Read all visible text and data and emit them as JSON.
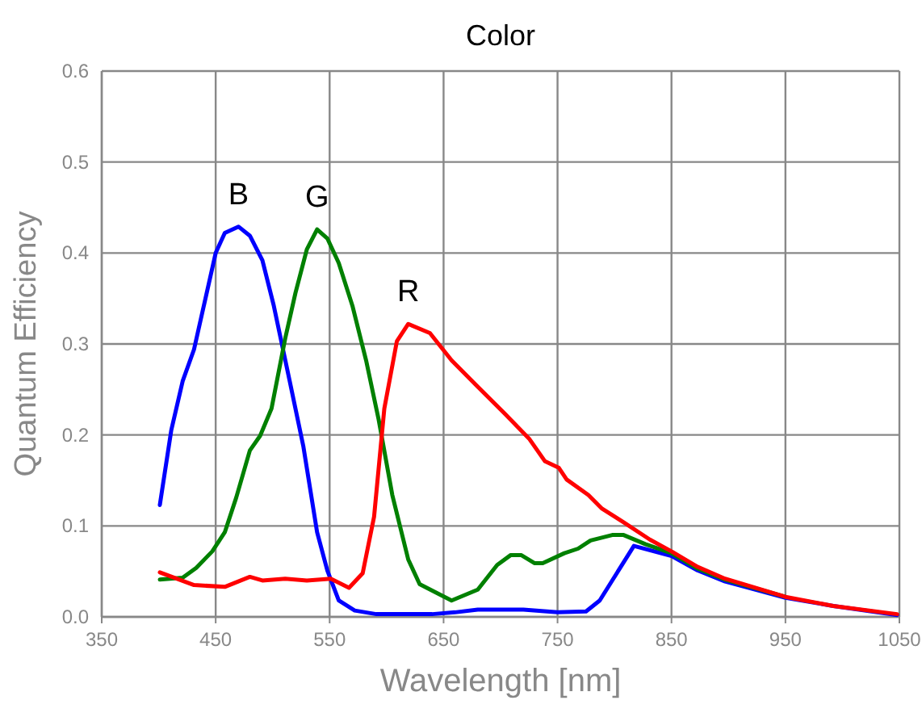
{
  "chart_data": {
    "type": "line",
    "title": "Color",
    "xlabel": "Wavelength [nm]",
    "ylabel": "Quantum Efficiency",
    "xlim": [
      350,
      1050
    ],
    "xticks": [
      350,
      450,
      550,
      650,
      750,
      850,
      950,
      1050
    ],
    "ylim": [
      0,
      0.6
    ],
    "yticks": [
      {
        "value": 0,
        "label": "0.0"
      },
      0.1,
      0.2,
      0.3,
      0.4,
      0.5,
      0.6
    ],
    "grid": true,
    "line_style": "solid",
    "marker": "none",
    "series": [
      {
        "name": "B",
        "color": "#0000ff",
        "x": [
          401,
          411,
          421,
          431,
          450,
          458,
          470,
          480,
          491,
          501,
          515,
          527,
          539,
          548,
          558,
          572,
          591,
          640,
          660,
          680,
          720,
          750,
          775,
          787,
          805,
          817,
          850,
          873,
          897,
          950,
          992,
          1048
        ],
        "values": [
          0.123,
          0.205,
          0.259,
          0.294,
          0.4,
          0.422,
          0.429,
          0.419,
          0.392,
          0.342,
          0.259,
          0.187,
          0.093,
          0.051,
          0.018,
          0.007,
          0.003,
          0.003,
          0.005,
          0.008,
          0.008,
          0.005,
          0.006,
          0.018,
          0.054,
          0.078,
          0.067,
          0.051,
          0.039,
          0.021,
          0.012,
          0.002
        ]
      },
      {
        "name": "G",
        "color": "#008000",
        "x": [
          401,
          421,
          433,
          447,
          458,
          468,
          480,
          489,
          499,
          511,
          520,
          530,
          539,
          548,
          558,
          570,
          582,
          593,
          605,
          619,
          629,
          657,
          680,
          697,
          709,
          718,
          730,
          737,
          756,
          768,
          779,
          798,
          808,
          827,
          850,
          873,
          897,
          950
        ],
        "values": [
          0.041,
          0.043,
          0.054,
          0.072,
          0.093,
          0.131,
          0.183,
          0.199,
          0.229,
          0.306,
          0.356,
          0.404,
          0.426,
          0.416,
          0.389,
          0.342,
          0.282,
          0.217,
          0.134,
          0.063,
          0.036,
          0.018,
          0.03,
          0.057,
          0.068,
          0.068,
          0.059,
          0.059,
          0.07,
          0.075,
          0.084,
          0.09,
          0.09,
          0.08,
          0.07,
          0.053,
          0.041,
          0.022
        ]
      },
      {
        "name": "R",
        "color": "#ff0000",
        "x": [
          401,
          431,
          458,
          480,
          491,
          511,
          530,
          551,
          567,
          579,
          589,
          598,
          609,
          619,
          638,
          657,
          680,
          704,
          725,
          739,
          751,
          758,
          777,
          789,
          808,
          831,
          850,
          873,
          897,
          950,
          992,
          1048
        ],
        "values": [
          0.049,
          0.035,
          0.033,
          0.044,
          0.04,
          0.042,
          0.04,
          0.042,
          0.032,
          0.048,
          0.11,
          0.229,
          0.303,
          0.322,
          0.312,
          0.282,
          0.253,
          0.223,
          0.196,
          0.171,
          0.164,
          0.151,
          0.134,
          0.119,
          0.104,
          0.085,
          0.072,
          0.055,
          0.042,
          0.022,
          0.012,
          0.003
        ]
      }
    ]
  }
}
